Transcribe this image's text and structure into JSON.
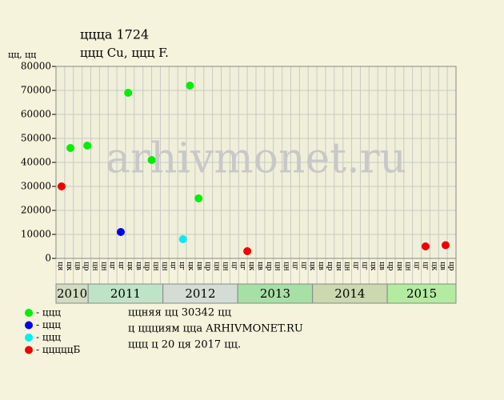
{
  "chart_data": {
    "type": "scatter",
    "title": "ццца 1724",
    "subtitle": "ццц Cu, ццц F.",
    "y_label": "цц, цц",
    "watermark": "arhivmonet.ru",
    "xlim": [
      0,
      46
    ],
    "ylim": [
      0,
      80000
    ],
    "yticks": [
      0,
      10000,
      20000,
      30000,
      40000,
      50000,
      60000,
      70000,
      80000
    ],
    "grid": true,
    "column_labels": [
      "ця",
      "цк",
      "цв",
      "цр",
      "цн",
      "цн",
      "цг",
      "цг",
      "цк",
      "цв",
      "цр",
      "цн",
      "цн",
      "цг",
      "цг",
      "цк",
      "цв",
      "цр",
      "цн",
      "цн",
      "цг",
      "цг",
      "цк",
      "цв",
      "цр",
      "цн",
      "цн",
      "цг",
      "цг",
      "цк",
      "цв",
      "цр",
      "цн",
      "цн",
      "цг",
      "цг",
      "цк",
      "цв",
      "цр",
      "цн",
      "цн",
      "цг",
      "цг",
      "цк",
      "цв",
      "цр"
    ],
    "years": [
      {
        "label": "2010",
        "from": 0,
        "to": 3.7,
        "color": "#d3dcc2"
      },
      {
        "label": "2011",
        "from": 3.7,
        "to": 12.3,
        "color": "#bfe3c6"
      },
      {
        "label": "2012",
        "from": 12.3,
        "to": 20.9,
        "color": "#d3ddd6"
      },
      {
        "label": "2013",
        "from": 20.9,
        "to": 29.5,
        "color": "#a6e0a6"
      },
      {
        "label": "2014",
        "from": 29.5,
        "to": 38.1,
        "color": "#cbd8b0"
      },
      {
        "label": "2015",
        "from": 38.1,
        "to": 46,
        "color": "#b3eba1"
      }
    ],
    "series": [
      {
        "name": "- ццц",
        "color": "#00ee00",
        "x": [
          1.66,
          3.6,
          8.3,
          11.0,
          15.4,
          16.4
        ],
        "values": [
          46000,
          47000,
          69000,
          41000,
          72000,
          25000
        ]
      },
      {
        "name": "- ццц",
        "color": "#0000ee",
        "x": [
          7.45
        ],
        "values": [
          11000
        ]
      },
      {
        "name": "- ццц",
        "color": "#00eeee",
        "x": [
          14.6
        ],
        "values": [
          8000
        ]
      },
      {
        "name": "- цццццБ",
        "color": "#ee0000",
        "x": [
          0.64,
          22.0,
          42.5,
          44.8
        ],
        "values": [
          30000,
          3000,
          5000,
          5500
        ]
      }
    ],
    "notes": [
      "ццняя цц 30342 цц",
      "ц ццциям цца ARHIVMONET.RU",
      "ццц ц 20 ця 2017 цц."
    ]
  }
}
